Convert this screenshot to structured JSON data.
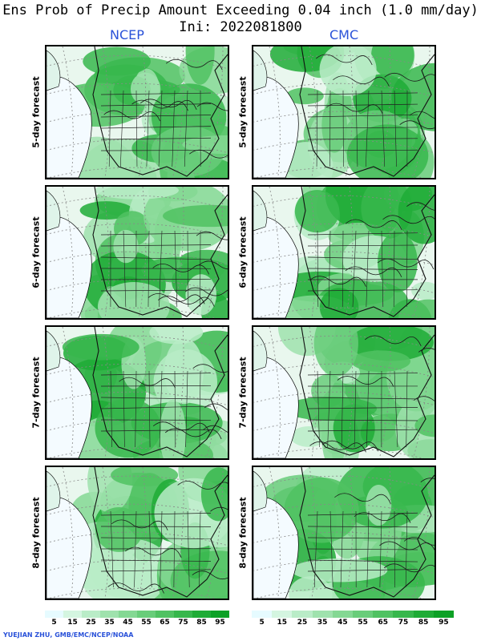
{
  "title_line1": "Ens Prob of Precip Amount Exceeding 0.04 inch (1.0 mm/day)",
  "title_line2": "Ini: 2022081800",
  "models": [
    "NCEP",
    "CMC"
  ],
  "rows": [
    "5-day forecast",
    "6-day forecast",
    "7-day forecast",
    "8-day forecast"
  ],
  "colorbar": {
    "colors": [
      "#e6fbff",
      "#d4f5e0",
      "#b9ecc7",
      "#9fe2ad",
      "#84d893",
      "#69cd7a",
      "#50c262",
      "#37b74c",
      "#1fac36",
      "#0da126"
    ],
    "labels": [
      "5",
      "15",
      "25",
      "35",
      "45",
      "55",
      "65",
      "75",
      "85",
      "95"
    ]
  },
  "credit": "YUEJIAN ZHU, GMB/EMC/NCEP/NOAA"
}
